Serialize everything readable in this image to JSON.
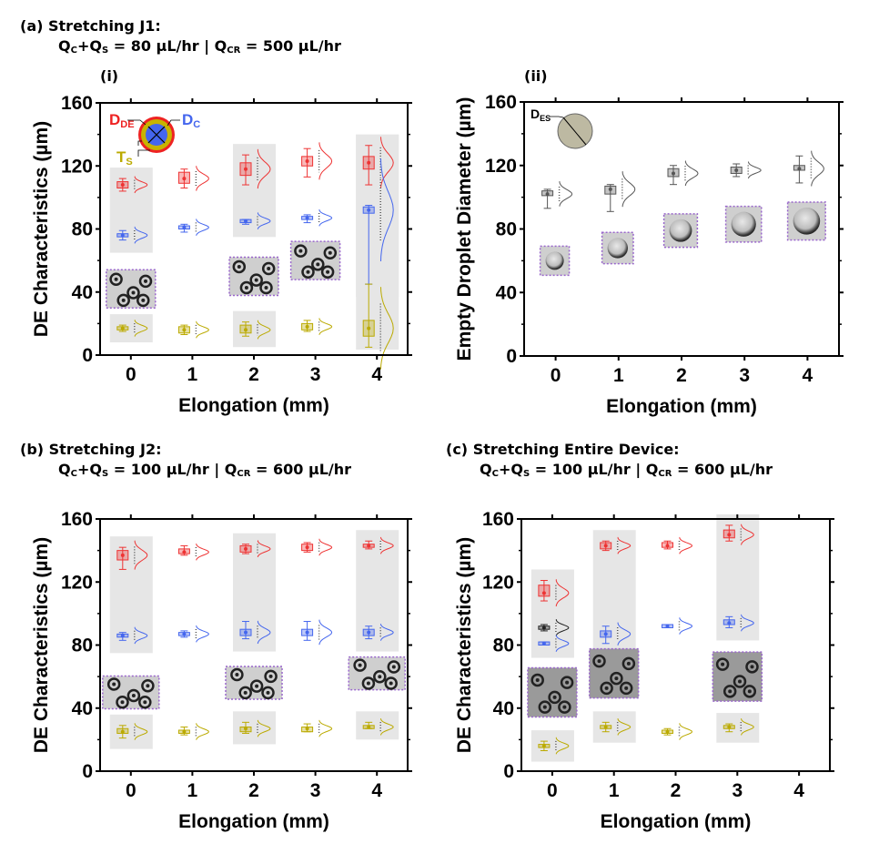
{
  "panels": {
    "a": {
      "label": "(a)",
      "title": "Stretching J1:",
      "flow": {
        "qc": "Q",
        "qc_sub": "C",
        "plus": "+Q",
        "qs_sub": "S",
        "rate1": " = 80 µL/hr | Q",
        "qcr_sub": "CR",
        "rate2": " = 500 µL/hr"
      },
      "sub_i": "(i)",
      "sub_ii": "(ii)"
    },
    "b": {
      "label": "(b)",
      "title": "Stretching J2:",
      "flow": {
        "qc": "Q",
        "qc_sub": "C",
        "plus": "+Q",
        "qs_sub": "S",
        "rate1": " = 100 µL/hr | Q",
        "qcr_sub": "CR",
        "rate2": " = 600 µL/hr"
      }
    },
    "c": {
      "label": "(c)",
      "title": "Stretching Entire Device:",
      "flow": {
        "qc": "Q",
        "qc_sub": "C",
        "plus": "+Q",
        "qs_sub": "S",
        "rate1": " = 100 µL/hr | Q",
        "qcr_sub": "CR",
        "rate2": " = 600 µL/hr"
      }
    }
  },
  "legend": {
    "dde": "D",
    "dde_sub": "DE",
    "dc": "D",
    "dc_sub": "C",
    "ts": "T",
    "ts_sub": "S",
    "des": "D",
    "des_sub": "ES"
  },
  "colors": {
    "dde": "#ee3333",
    "dc": "#4466ee",
    "ts": "#bbaa00",
    "empty": "#555555",
    "extra": "#222222",
    "highlight": "#e6e6e6",
    "dotted_border": "#9966cc"
  },
  "chart_data": [
    {
      "id": "a-i",
      "type": "box",
      "title": "(i)",
      "xlabel": "Elongation (mm)",
      "ylabel": "DE Characteristics (µm)",
      "xlim": [
        -0.5,
        4.5
      ],
      "ylim": [
        0,
        160
      ],
      "xticks": [
        "0",
        "1",
        "2",
        "3",
        "4"
      ],
      "yticks": [
        "0",
        "40",
        "80",
        "120",
        "160"
      ],
      "highlight_x": [
        0,
        2,
        4
      ],
      "series": [
        {
          "name": "DDE",
          "color_key": "dde",
          "x": [
            0,
            1,
            2,
            3,
            4
          ],
          "median": [
            108,
            112,
            118,
            123,
            122
          ],
          "q1": [
            106,
            109,
            114,
            120,
            118
          ],
          "q3": [
            110,
            116,
            122,
            126,
            126
          ],
          "min": [
            104,
            106,
            108,
            113,
            108
          ],
          "max": [
            112,
            118,
            127,
            131,
            133
          ]
        },
        {
          "name": "DC",
          "color_key": "dc",
          "x": [
            0,
            1,
            2,
            3,
            4
          ],
          "median": [
            76,
            81,
            85,
            87,
            92
          ],
          "q1": [
            75,
            80,
            84,
            86,
            90
          ],
          "q3": [
            77,
            82,
            86,
            88,
            94
          ],
          "min": [
            73,
            78,
            83,
            84,
            45
          ],
          "max": [
            79,
            83,
            86,
            89,
            95
          ]
        },
        {
          "name": "TS",
          "color_key": "ts",
          "x": [
            0,
            1,
            2,
            3,
            4
          ],
          "median": [
            17,
            16,
            16,
            18,
            17
          ],
          "q1": [
            16,
            14,
            14,
            16,
            12
          ],
          "q3": [
            18,
            18,
            19,
            20,
            22
          ],
          "min": [
            15,
            13,
            12,
            15,
            5
          ],
          "max": [
            19,
            19,
            21,
            22,
            45
          ]
        }
      ]
    },
    {
      "id": "a-ii",
      "type": "box",
      "title": "(ii)",
      "xlabel": "Elongation (mm)",
      "ylabel": "Empty Droplet Diameter (µm)",
      "xlim": [
        -0.5,
        4.5
      ],
      "ylim": [
        0,
        160
      ],
      "xticks": [
        "0",
        "1",
        "2",
        "3",
        "4"
      ],
      "yticks": [
        "0",
        "40",
        "80",
        "120",
        "160"
      ],
      "highlight_x": [],
      "series": [
        {
          "name": "DES",
          "color_key": "empty",
          "x": [
            0,
            1,
            2,
            3,
            4
          ],
          "median": [
            102,
            105,
            115,
            117,
            118
          ],
          "q1": [
            101,
            102,
            113,
            115,
            117
          ],
          "q3": [
            104,
            107,
            118,
            119,
            120
          ],
          "min": [
            93,
            91,
            108,
            113,
            109
          ],
          "max": [
            105,
            108,
            120,
            121,
            126
          ]
        }
      ],
      "image_centers": [
        60,
        68,
        79,
        83,
        85
      ]
    },
    {
      "id": "b",
      "type": "box",
      "xlabel": "Elongation (mm)",
      "ylabel": "DE Characteristics (µm)",
      "xlim": [
        -0.5,
        4.5
      ],
      "ylim": [
        0,
        160
      ],
      "xticks": [
        "0",
        "1",
        "2",
        "3",
        "4"
      ],
      "yticks": [
        "0",
        "40",
        "80",
        "120",
        "160"
      ],
      "highlight_x": [
        0,
        2,
        4
      ],
      "series": [
        {
          "name": "DDE",
          "color_key": "dde",
          "x": [
            0,
            1,
            2,
            3,
            4
          ],
          "median": [
            137,
            139,
            141,
            142,
            143
          ],
          "q1": [
            134,
            138,
            139,
            140,
            142
          ],
          "q3": [
            140,
            141,
            143,
            144,
            144
          ],
          "min": [
            128,
            137,
            138,
            139,
            141
          ],
          "max": [
            142,
            143,
            144,
            145,
            146
          ]
        },
        {
          "name": "DC",
          "color_key": "dc",
          "x": [
            0,
            1,
            2,
            3,
            4
          ],
          "median": [
            86,
            87,
            88,
            88,
            88
          ],
          "q1": [
            85,
            86,
            86,
            86,
            86
          ],
          "q3": [
            87,
            88,
            90,
            90,
            90
          ],
          "min": [
            83,
            85,
            84,
            83,
            84
          ],
          "max": [
            88,
            89,
            95,
            95,
            92
          ]
        },
        {
          "name": "TS",
          "color_key": "ts",
          "x": [
            0,
            1,
            2,
            3,
            4
          ],
          "median": [
            25,
            25,
            27,
            27,
            28
          ],
          "q1": [
            24,
            24,
            25,
            25,
            27
          ],
          "q3": [
            27,
            26,
            28,
            28,
            29
          ],
          "min": [
            21,
            23,
            24,
            25,
            27
          ],
          "max": [
            29,
            28,
            31,
            30,
            31
          ]
        }
      ]
    },
    {
      "id": "c",
      "type": "box",
      "xlabel": "Elongation (mm)",
      "ylabel": "DE Characteristics (µm)",
      "xlim": [
        -0.5,
        4.5
      ],
      "ylim": [
        0,
        160
      ],
      "xticks": [
        "0",
        "1",
        "2",
        "3",
        "4"
      ],
      "yticks": [
        "0",
        "40",
        "80",
        "120",
        "160"
      ],
      "highlight_x": [
        0,
        1,
        3
      ],
      "series": [
        {
          "name": "DDE",
          "color_key": "dde",
          "x": [
            0,
            1,
            2,
            3
          ],
          "median": [
            113,
            143,
            143,
            150
          ],
          "q1": [
            111,
            141,
            142,
            148
          ],
          "q3": [
            118,
            145,
            145,
            153
          ],
          "min": [
            108,
            140,
            141,
            146
          ],
          "max": [
            121,
            146,
            146,
            156
          ]
        },
        {
          "name": "Extra",
          "color_key": "extra",
          "x": [
            0
          ],
          "median": [
            91
          ],
          "q1": [
            90
          ],
          "q3": [
            92
          ],
          "min": [
            89
          ],
          "max": [
            93
          ]
        },
        {
          "name": "DC",
          "color_key": "dc",
          "x": [
            0,
            1,
            2,
            3
          ],
          "median": [
            81,
            87,
            92,
            94
          ],
          "q1": [
            80,
            85,
            91,
            93
          ],
          "q3": [
            82,
            89,
            93,
            96
          ],
          "min": [
            80,
            81,
            91,
            91
          ],
          "max": [
            82,
            92,
            93,
            98
          ]
        },
        {
          "name": "TS",
          "color_key": "ts",
          "x": [
            0,
            1,
            2,
            3
          ],
          "median": [
            16,
            28,
            25,
            28
          ],
          "q1": [
            15,
            27,
            24,
            27
          ],
          "q3": [
            17,
            29,
            26,
            29
          ],
          "min": [
            13,
            25,
            23,
            25
          ],
          "max": [
            19,
            31,
            27,
            30
          ]
        }
      ]
    }
  ]
}
